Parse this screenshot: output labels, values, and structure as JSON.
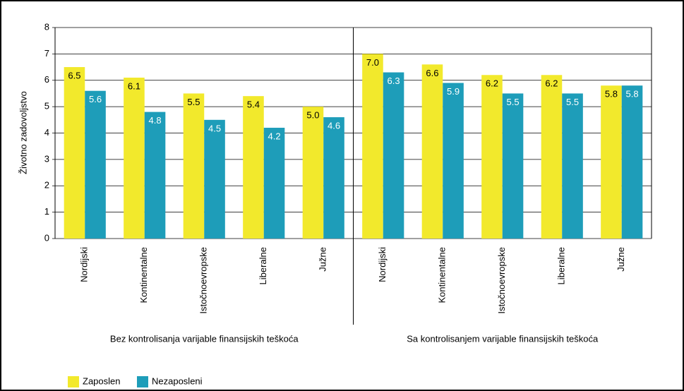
{
  "chart_data": {
    "type": "bar",
    "y_label": "Životno zadovoljstvo",
    "categories": [
      "Nordijski",
      "Kontinentalne",
      "Istočnoevropske",
      "Liberalne",
      "Južne",
      "Nordijski",
      "Kontinentalne",
      "Istočnoevropske",
      "Liberalne",
      "Južne"
    ],
    "groups": [
      "Bez kontrolisanja varijable finansijskih teškoća",
      "Sa kontrolisanjem varijable finansijskih teškoća"
    ],
    "series": [
      {
        "name": "Zaposlen",
        "color": "#f2e92c",
        "label_color": "#000000",
        "values": [
          6.5,
          6.1,
          5.5,
          5.4,
          5,
          7,
          6.6,
          6.2,
          6.2,
          5.8
        ],
        "value_labels": [
          "6.5",
          "6.1",
          "5.5",
          "5.4",
          "5.0",
          "7.0",
          "6.6",
          "6.2",
          "6.2",
          "5.8"
        ]
      },
      {
        "name": "Nezaposleni",
        "color": "#1e9db9",
        "label_color": "#ffffff",
        "values": [
          5.6,
          4.8,
          4.5,
          4.2,
          4.6,
          6.3,
          5.9,
          5.5,
          5.5,
          5.8
        ],
        "value_labels": [
          "5.6",
          "4.8",
          "4.5",
          "4.2",
          "4.6",
          "6.3",
          "5.9",
          "5.5",
          "5.5",
          "5.8"
        ]
      }
    ],
    "ylim": [
      0,
      8
    ],
    "yticks": [
      0,
      1,
      2,
      3,
      4,
      5,
      6,
      7,
      8
    ],
    "grid": true
  }
}
